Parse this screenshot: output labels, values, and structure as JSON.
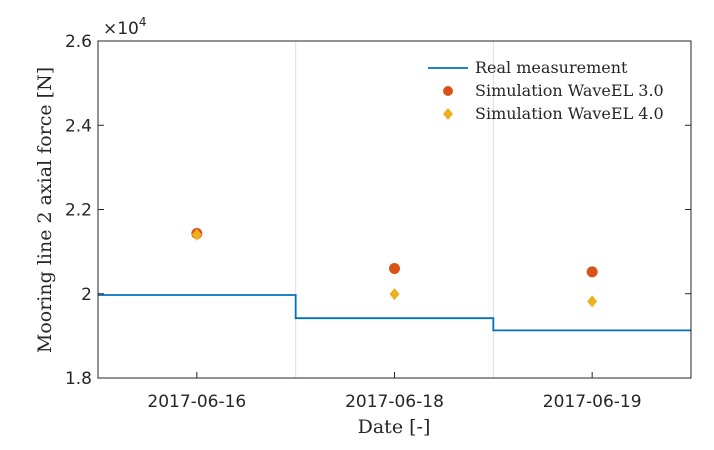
{
  "chart_data": {
    "type": "line",
    "categories": [
      "2017-06-16",
      "2017-06-18",
      "2017-06-19"
    ],
    "xlabel": "Date [-]",
    "ylabel": "Mooring line 2 axial force [N]",
    "y_multiplier": "×10",
    "y_exponent": "4",
    "ylim": [
      18000,
      26000
    ],
    "yticks": [
      18000,
      20000,
      22000,
      24000,
      26000
    ],
    "ytick_labels": [
      "1.8",
      "2",
      "2.2",
      "2.4",
      "2.6"
    ],
    "grid": "vertical category separators",
    "legend_position": "top-right",
    "series": [
      {
        "name": "Real measurement",
        "kind": "step-line",
        "values": [
          19970,
          19420,
          19130
        ],
        "color": "#0072BD"
      },
      {
        "name": "Simulation WaveEL 3.0",
        "kind": "marker-circle",
        "values": [
          21430,
          20600,
          20520
        ],
        "color": "#D95319"
      },
      {
        "name": "Simulation WaveEL 4.0",
        "kind": "marker-diamond",
        "values": [
          21400,
          19990,
          19820
        ],
        "color": "#EDB120"
      }
    ]
  }
}
